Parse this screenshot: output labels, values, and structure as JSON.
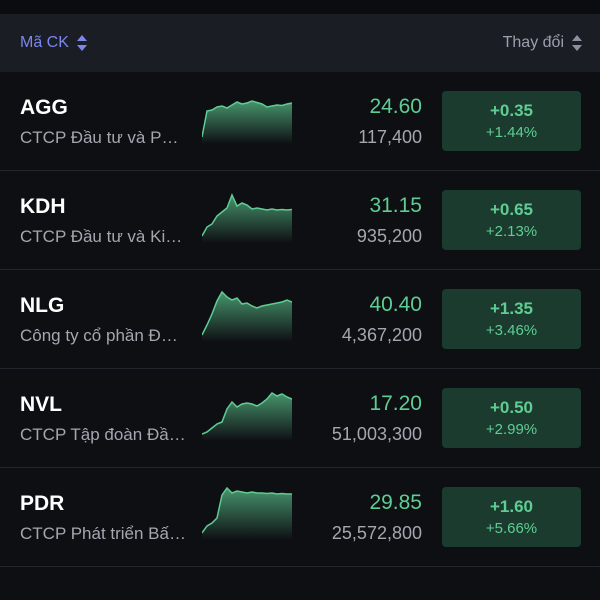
{
  "header": {
    "left_label": "Mã CK",
    "right_label": "Thay đổi"
  },
  "colors": {
    "background": "#0e0f13",
    "header_bg": "#1b1d25",
    "accent": "#7b86ee",
    "up": "#5fcd93",
    "up_bg": "#1c3b2f"
  },
  "stocks": [
    {
      "ticker": "AGG",
      "name": "CTCP Đầu tư và Phát triển Bất động sản An Gia",
      "price": "24.60",
      "volume": "117,400",
      "change": "+0.35",
      "change_pct": "+1.44%",
      "spark": [
        10,
        62,
        64,
        70,
        72,
        68,
        74,
        80,
        76,
        78,
        82,
        79,
        76,
        70,
        72,
        74,
        73,
        76,
        78
      ]
    },
    {
      "ticker": "KDH",
      "name": "CTCP Đầu tư và Kinh doanh Nhà Khang Điền",
      "price": "31.15",
      "volume": "935,200",
      "change": "+0.65",
      "change_pct": "+2.13%",
      "spark": [
        10,
        28,
        34,
        50,
        58,
        66,
        92,
        70,
        76,
        72,
        64,
        66,
        64,
        62,
        64,
        62,
        63,
        62,
        63
      ]
    },
    {
      "ticker": "NLG",
      "name": "Công ty cổ phần Đầu tư Nam Long",
      "price": "40.40",
      "volume": "4,367,200",
      "change": "+1.35",
      "change_pct": "+3.46%",
      "spark": [
        10,
        30,
        52,
        78,
        96,
        86,
        80,
        84,
        72,
        74,
        68,
        64,
        68,
        70,
        72,
        74,
        76,
        80,
        76
      ]
    },
    {
      "ticker": "NVL",
      "name": "CTCP Tập đoàn Đầu tư Địa ốc No Va",
      "price": "17.20",
      "volume": "51,003,300",
      "change": "+0.50",
      "change_pct": "+2.99%",
      "spark": [
        10,
        14,
        22,
        30,
        34,
        60,
        74,
        64,
        70,
        72,
        70,
        66,
        72,
        80,
        92,
        86,
        90,
        84,
        80
      ]
    },
    {
      "ticker": "PDR",
      "name": "CTCP Phát triển Bất động sản Phát Đạt",
      "price": "29.85",
      "volume": "25,572,800",
      "change": "+1.60",
      "change_pct": "+5.66%",
      "spark": [
        10,
        24,
        30,
        40,
        86,
        100,
        90,
        94,
        92,
        90,
        92,
        90,
        90,
        89,
        90,
        88,
        89,
        88,
        88
      ]
    }
  ]
}
